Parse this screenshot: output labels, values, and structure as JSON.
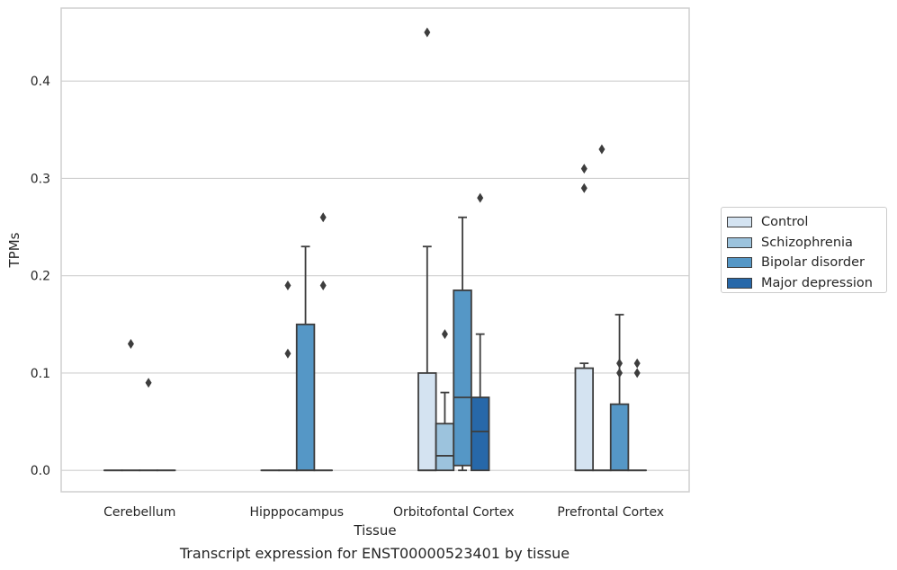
{
  "chart_data": {
    "type": "box",
    "title": "",
    "xlabel": "Tissue",
    "ylabel": "TPMs",
    "caption": "Transcript expression for ENST00000523401 by tissue",
    "ylim": [
      -0.022,
      0.475
    ],
    "yticks": [
      "0.0",
      "0.1",
      "0.2",
      "0.3",
      "0.4"
    ],
    "grid": "horizontal",
    "legend_position": "right",
    "categories": [
      "Cerebellum",
      "Hipppocampus",
      "Orbitofontal Cortex",
      "Prefrontal Cortex"
    ],
    "series": [
      {
        "name": "Control",
        "color": "#d4e3f1",
        "boxes": [
          {
            "category": "Cerebellum",
            "q1": 0,
            "median": 0,
            "q3": 0,
            "whislo": 0,
            "whishi": 0,
            "fliers": []
          },
          {
            "category": "Hipppocampus",
            "q1": 0,
            "median": 0,
            "q3": 0,
            "whislo": 0,
            "whishi": 0,
            "fliers": []
          },
          {
            "category": "Orbitofontal Cortex",
            "q1": 0,
            "median": 0,
            "q3": 0.1,
            "whislo": 0,
            "whishi": 0.23,
            "fliers": [
              0.45
            ]
          },
          {
            "category": "Prefrontal Cortex",
            "q1": 0,
            "median": 0,
            "q3": 0.105,
            "whislo": 0,
            "whishi": 0.11,
            "fliers": [
              0.29,
              0.31
            ]
          }
        ]
      },
      {
        "name": "Schizophrenia",
        "color": "#9cc3dd",
        "boxes": [
          {
            "category": "Cerebellum",
            "q1": 0,
            "median": 0,
            "q3": 0,
            "whislo": 0,
            "whishi": 0,
            "fliers": [
              0.13
            ]
          },
          {
            "category": "Hipppocampus",
            "q1": 0,
            "median": 0,
            "q3": 0,
            "whislo": 0,
            "whishi": 0,
            "fliers": [
              0.19,
              0.12
            ]
          },
          {
            "category": "Orbitofontal Cortex",
            "q1": 0,
            "median": 0.015,
            "q3": 0.048,
            "whislo": 0,
            "whishi": 0.08,
            "fliers": [
              0.14
            ]
          },
          {
            "category": "Prefrontal Cortex",
            "q1": 0,
            "median": 0,
            "q3": 0,
            "whislo": 0,
            "whishi": 0,
            "fliers": [
              0.33
            ]
          }
        ]
      },
      {
        "name": "Bipolar disorder",
        "color": "#5597c6",
        "boxes": [
          {
            "category": "Cerebellum",
            "q1": 0,
            "median": 0,
            "q3": 0,
            "whislo": 0,
            "whishi": 0,
            "fliers": [
              0.09
            ]
          },
          {
            "category": "Hipppocampus",
            "q1": 0,
            "median": 0,
            "q3": 0.15,
            "whislo": 0,
            "whishi": 0.23,
            "fliers": []
          },
          {
            "category": "Orbitofontal Cortex",
            "q1": 0.005,
            "median": 0.075,
            "q3": 0.185,
            "whislo": 0,
            "whishi": 0.26,
            "fliers": []
          },
          {
            "category": "Prefrontal Cortex",
            "q1": 0,
            "median": 0,
            "q3": 0.068,
            "whislo": 0,
            "whishi": 0.16,
            "fliers": [
              0.11,
              0.1
            ]
          }
        ]
      },
      {
        "name": "Major depression",
        "color": "#2768a9",
        "boxes": [
          {
            "category": "Cerebellum",
            "q1": 0,
            "median": 0,
            "q3": 0,
            "whislo": 0,
            "whishi": 0,
            "fliers": []
          },
          {
            "category": "Hipppocampus",
            "q1": 0,
            "median": 0,
            "q3": 0,
            "whislo": 0,
            "whishi": 0,
            "fliers": [
              0.19,
              0.26
            ]
          },
          {
            "category": "Orbitofontal Cortex",
            "q1": 0,
            "median": 0.04,
            "q3": 0.075,
            "whislo": 0,
            "whishi": 0.14,
            "fliers": [
              0.28
            ]
          },
          {
            "category": "Prefrontal Cortex",
            "q1": 0,
            "median": 0,
            "q3": 0,
            "whislo": 0,
            "whishi": 0,
            "fliers": [
              0.11,
              0.1
            ]
          }
        ]
      }
    ]
  }
}
